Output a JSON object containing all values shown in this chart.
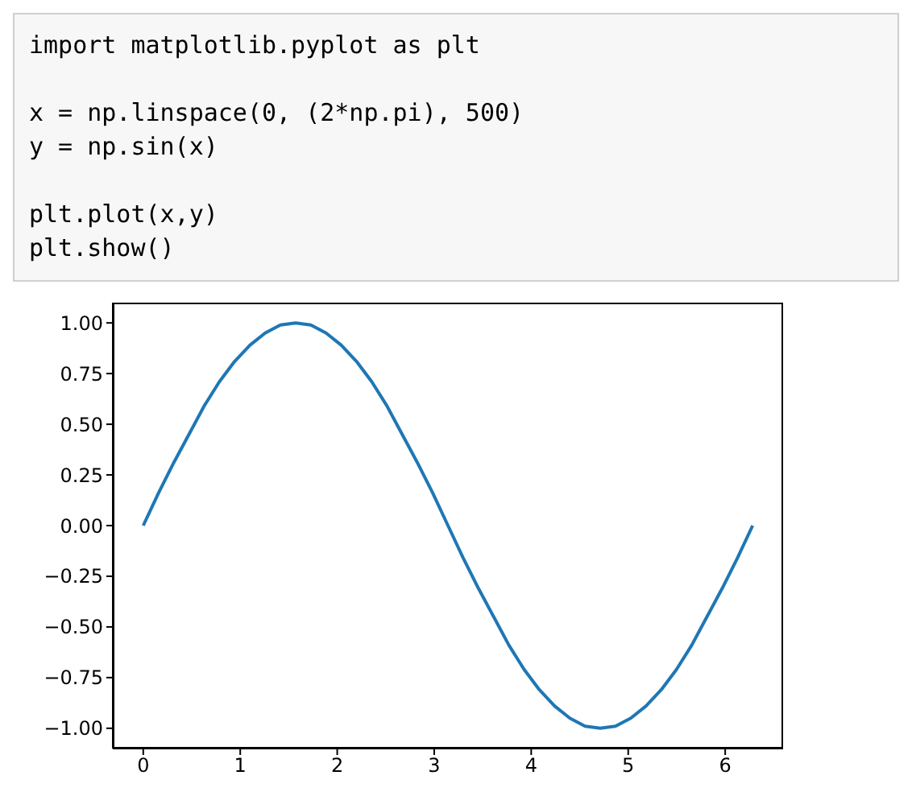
{
  "chart_data": {
    "type": "line",
    "annotations": [
      "import matplotlib.pyplot as plt",
      "x = np.linspace(0, (2*np.pi), 500)\ny = np.sin(x)",
      "plt.plot(x,y)\nplt.show()"
    ],
    "x": [
      0,
      0.157,
      0.314,
      0.471,
      0.628,
      0.785,
      0.942,
      1.1,
      1.257,
      1.414,
      1.571,
      1.728,
      1.885,
      2.042,
      2.199,
      2.356,
      2.513,
      2.67,
      2.827,
      2.985,
      3.142,
      3.299,
      3.456,
      3.613,
      3.77,
      3.927,
      4.084,
      4.241,
      4.398,
      4.555,
      4.712,
      4.869,
      5.027,
      5.184,
      5.341,
      5.498,
      5.655,
      5.812,
      5.969,
      6.126,
      6.283
    ],
    "series": [
      {
        "color": "#1f77b4",
        "values": [
          0,
          0.16,
          0.31,
          0.45,
          0.59,
          0.71,
          0.81,
          0.89,
          0.95,
          0.99,
          1,
          0.99,
          0.95,
          0.89,
          0.81,
          0.71,
          0.59,
          0.45,
          0.31,
          0.16,
          0,
          -0.16,
          -0.31,
          -0.45,
          -0.59,
          -0.71,
          -0.81,
          -0.89,
          -0.95,
          -0.99,
          -1,
          -0.99,
          -0.95,
          -0.89,
          -0.81,
          -0.71,
          -0.59,
          -0.45,
          -0.31,
          -0.16,
          0
        ]
      }
    ],
    "xlim": [
      -0.314,
      6.597
    ],
    "ylim": [
      -1.1,
      1.1
    ],
    "xticks": [
      0,
      1,
      2,
      3,
      4,
      5,
      6
    ],
    "yticks": [
      {
        "value": -1,
        "label": "−1.00"
      },
      {
        "value": -0.75,
        "label": "−0.75"
      },
      {
        "value": -0.5,
        "label": "−0.50"
      },
      {
        "value": -0.25,
        "label": "−0.25"
      },
      {
        "value": 0,
        "label": "0.00"
      },
      {
        "value": 0.25,
        "label": "0.25"
      },
      {
        "value": 0.5,
        "label": "0.50"
      },
      {
        "value": 0.75,
        "label": "0.75"
      },
      {
        "value": 1,
        "label": "1.00"
      }
    ]
  }
}
